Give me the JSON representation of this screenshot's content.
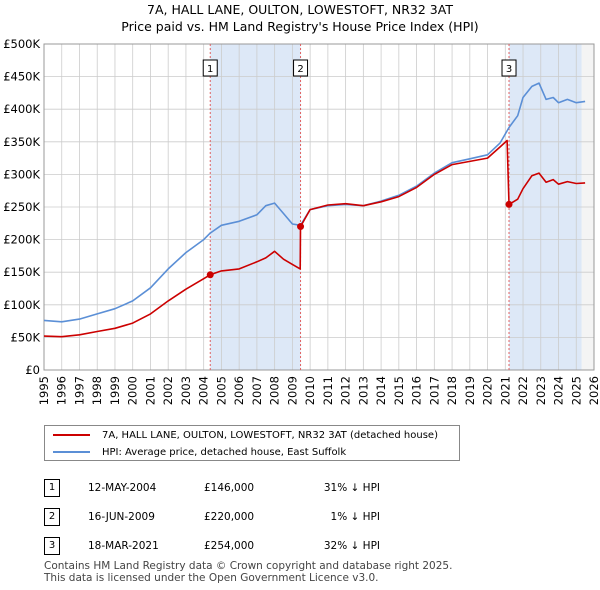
{
  "title_line1": "7A, HALL LANE, OULTON, LOWESTOFT, NR32 3AT",
  "title_line2": "Price paid vs. HM Land Registry's House Price Index (HPI)",
  "legend": {
    "property": "7A, HALL LANE, OULTON, LOWESTOFT, NR32 3AT (detached house)",
    "hpi": "HPI: Average price, detached house, East Suffolk"
  },
  "sales": [
    {
      "num": "1",
      "date": "12-MAY-2004",
      "price": "£146,000",
      "hpi_diff": "31% ↓ HPI"
    },
    {
      "num": "2",
      "date": "16-JUN-2009",
      "price": "£220,000",
      "hpi_diff": "1% ↓ HPI"
    },
    {
      "num": "3",
      "date": "18-MAR-2021",
      "price": "£254,000",
      "hpi_diff": "32% ↓ HPI"
    }
  ],
  "footer_line1": "Contains HM Land Registry data © Crown copyright and database right 2025.",
  "footer_line2": "This data is licensed under the Open Government Licence v3.0.",
  "colors": {
    "property": "#cc0000",
    "hpi": "#5b8fd6",
    "shade": "#dde8f7",
    "grid": "#cccccc",
    "vline": "#e06060"
  },
  "chart_data": {
    "type": "line",
    "title": "Price paid vs. HM Land Registry's House Price Index (HPI)",
    "xlim": [
      1995,
      2026
    ],
    "ylim": [
      0,
      500000
    ],
    "y_ticks": [
      0,
      50000,
      100000,
      150000,
      200000,
      250000,
      300000,
      350000,
      400000,
      450000,
      500000
    ],
    "y_tick_labels": [
      "£0",
      "£50K",
      "£100K",
      "£150K",
      "£200K",
      "£250K",
      "£300K",
      "£350K",
      "£400K",
      "£450K",
      "£500K"
    ],
    "x_ticks": [
      1995,
      1996,
      1997,
      1998,
      1999,
      2000,
      2001,
      2002,
      2003,
      2004,
      2005,
      2006,
      2007,
      2008,
      2009,
      2010,
      2011,
      2012,
      2013,
      2014,
      2015,
      2016,
      2017,
      2018,
      2019,
      2020,
      2021,
      2022,
      2023,
      2024,
      2025,
      2026
    ],
    "x_tick_labels": [
      "1995",
      "1996",
      "1997",
      "1998",
      "1999",
      "2000",
      "2001",
      "2002",
      "2003",
      "2004",
      "2005",
      "2006",
      "2007",
      "2008",
      "2009",
      "2010",
      "2011",
      "2012",
      "2013",
      "2014",
      "2015",
      "2016",
      "2017",
      "2018",
      "2019",
      "2020",
      "2021",
      "2022",
      "2023",
      "2024",
      "2025",
      "2026"
    ],
    "shaded_from": 2025.3,
    "sale_markers": [
      {
        "label": "1",
        "x": 2004.37,
        "y": 146000
      },
      {
        "label": "2",
        "x": 2009.46,
        "y": 220000
      },
      {
        "label": "3",
        "x": 2021.21,
        "y": 254000
      }
    ],
    "series": [
      {
        "name": "7A, HALL LANE, OULTON, LOWESTOFT, NR32 3AT (detached house)",
        "color": "#cc0000",
        "x": [
          1995,
          1996,
          1997,
          1998,
          1999,
          2000,
          2001,
          2002,
          2003,
          2004,
          2004.37,
          2005,
          2006,
          2007,
          2007.5,
          2008,
          2008.5,
          2009,
          2009.44,
          2009.46,
          2010,
          2011,
          2012,
          2013,
          2014,
          2015,
          2016,
          2017,
          2018,
          2019,
          2020,
          2020.7,
          2021.1,
          2021.21,
          2021.7,
          2022,
          2022.5,
          2022.9,
          2023.3,
          2023.7,
          2024,
          2024.5,
          2025,
          2025.5
        ],
        "y": [
          52000,
          51000,
          54000,
          59000,
          64000,
          72000,
          86000,
          106000,
          124000,
          140000,
          146000,
          152000,
          155000,
          166000,
          172000,
          182000,
          170000,
          162000,
          155000,
          220000,
          246000,
          253000,
          255000,
          252000,
          258000,
          266000,
          280000,
          300000,
          315000,
          320000,
          325000,
          342000,
          352000,
          254000,
          262000,
          278000,
          298000,
          302000,
          288000,
          292000,
          285000,
          289000,
          286000,
          287000
        ]
      },
      {
        "name": "HPI: Average price, detached house, East Suffolk",
        "color": "#5b8fd6",
        "x": [
          1995,
          1996,
          1997,
          1998,
          1999,
          2000,
          2001,
          2002,
          2003,
          2004,
          2004.37,
          2005,
          2006,
          2007,
          2007.5,
          2008,
          2008.5,
          2009,
          2009.46,
          2010,
          2011,
          2012,
          2013,
          2014,
          2015,
          2016,
          2017,
          2018,
          2019,
          2020,
          2020.7,
          2021.21,
          2021.7,
          2022,
          2022.5,
          2022.9,
          2023.3,
          2023.7,
          2024,
          2024.5,
          2025,
          2025.5
        ],
        "y": [
          76000,
          74000,
          78000,
          86000,
          94000,
          106000,
          126000,
          155000,
          180000,
          200000,
          210000,
          222000,
          228000,
          238000,
          252000,
          256000,
          240000,
          224000,
          222000,
          246000,
          252000,
          254000,
          252000,
          259000,
          268000,
          282000,
          302000,
          318000,
          324000,
          330000,
          348000,
          372000,
          390000,
          418000,
          435000,
          440000,
          415000,
          418000,
          410000,
          415000,
          410000,
          412000
        ]
      }
    ]
  }
}
